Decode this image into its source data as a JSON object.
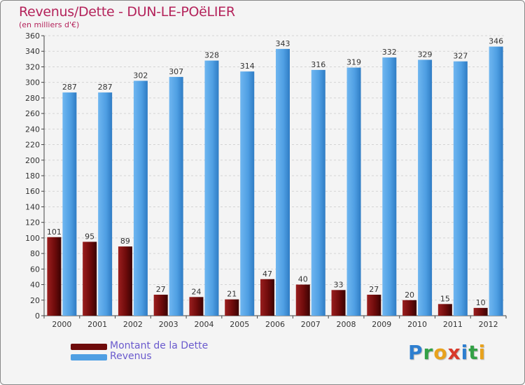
{
  "header": {
    "title": "Revenus/Dette - DUN-LE-POëLIER",
    "subtitle": "(en milliers d'€)"
  },
  "legend": {
    "dette_label": "Montant de la Dette",
    "revenus_label": "Revenus"
  },
  "logo": {
    "text": "Proxiti"
  },
  "colors": {
    "dette": "#6e0b0b",
    "revenus": "#4f9fe3",
    "title": "#b4235b",
    "legend_text": "#6a5acd"
  },
  "chart_data": {
    "type": "bar",
    "title": "Revenus/Dette - DUN-LE-POëLIER",
    "subtitle": "(en milliers d'€)",
    "xlabel": "",
    "ylabel": "",
    "ylim": [
      0,
      360
    ],
    "y_ticks": [
      0,
      20,
      40,
      60,
      80,
      100,
      120,
      140,
      160,
      180,
      200,
      220,
      240,
      260,
      280,
      300,
      320,
      340,
      360
    ],
    "grid": true,
    "legend_position": "bottom-left",
    "categories": [
      "2000",
      "2001",
      "2002",
      "2003",
      "2004",
      "2005",
      "2006",
      "2007",
      "2008",
      "2009",
      "2010",
      "2011",
      "2012"
    ],
    "series": [
      {
        "name": "Montant de la Dette",
        "color": "#6e0b0b",
        "values": [
          101,
          95,
          89,
          27,
          24,
          21,
          47,
          40,
          33,
          27,
          20,
          15,
          10
        ]
      },
      {
        "name": "Revenus",
        "color": "#4f9fe3",
        "values": [
          287,
          287,
          302,
          307,
          328,
          314,
          343,
          316,
          319,
          332,
          329,
          327,
          346
        ]
      }
    ]
  }
}
